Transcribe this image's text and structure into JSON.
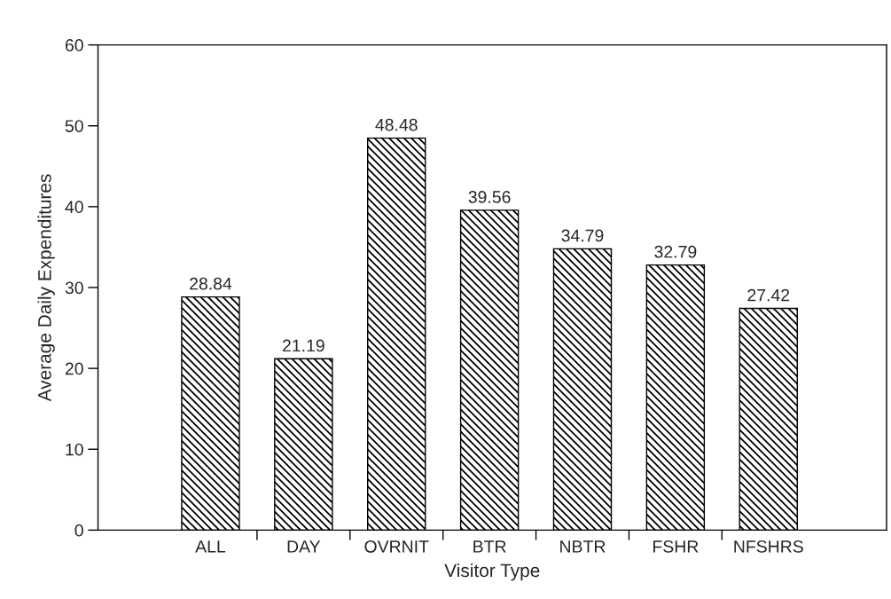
{
  "chart_data": {
    "type": "bar",
    "xlabel": "Visitor Type",
    "ylabel": "Average Daily Expenditures",
    "categories": [
      "ALL",
      "DAY",
      "OVRNIT",
      "BTR",
      "NBTR",
      "FSHR",
      "NFSHRS"
    ],
    "values": [
      28.84,
      21.19,
      48.48,
      39.56,
      34.79,
      32.79,
      27.42
    ],
    "color": "#000000",
    "ylim": [
      0,
      60
    ],
    "yticks": [
      0,
      10,
      20,
      30,
      40,
      50,
      60
    ],
    "grid": false,
    "data_labels": true
  }
}
